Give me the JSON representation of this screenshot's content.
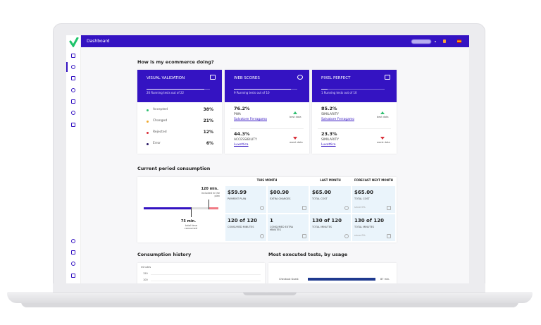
{
  "header": {
    "title": "Dashboard"
  },
  "overview": {
    "title": "How is my ecommerce doing?"
  },
  "cards": [
    {
      "title": "VISUAL VALIDATION",
      "subtitle": "20 Running tests out of 22",
      "rows": [
        {
          "label": "Accepted",
          "value": "38%"
        },
        {
          "label": "Changed",
          "value": "21%"
        },
        {
          "label": "Rejected",
          "value": "12%"
        },
        {
          "label": "Error",
          "value": "6%"
        }
      ]
    },
    {
      "title": "WEB SCORES",
      "subtitle": "9 Running tests out of 10",
      "items": [
        {
          "value": "76.2%",
          "metric": "PWA",
          "link": "Salvatore Ferragamo",
          "note": "best data"
        },
        {
          "value": "44.3%",
          "metric": "ACCESSIBILITY",
          "link": "Luxottica",
          "note": "worst data"
        }
      ]
    },
    {
      "title": "PIXEL PERFECT",
      "subtitle": "1 Running tests out of 10",
      "items": [
        {
          "value": "85.2%",
          "metric": "SIMILARITY",
          "link": "Salvatore Ferragamo",
          "note": "best data"
        },
        {
          "value": "23.3%",
          "metric": "SIMILARITY",
          "link": "Luxottica",
          "note": "worst data"
        }
      ]
    }
  ],
  "consumption": {
    "title": "Current period consumption",
    "plan_label": "120 min.",
    "plan_note": "included in the plan",
    "used_label": "75 min.",
    "used_note": "total time consumed",
    "columns": [
      "THIS MONTH",
      "LAST MONTH",
      "FORECAST NEXT MONTH"
    ],
    "cells": [
      {
        "value": "$59.99",
        "label": "PAYMENT PLAN"
      },
      {
        "value": "$00.90",
        "label": "EXTRA CHARGES"
      },
      {
        "value": "$65.00",
        "label": "TOTAL COST"
      },
      {
        "value": "$65.00",
        "label": "TOTAL COST",
        "note": "since 0%"
      },
      {
        "value": "120 of 120",
        "label": "CONSUMED MINUTES"
      },
      {
        "value": "1",
        "label": "CONSUMED EXTRA MINUTES"
      },
      {
        "value": "130 of 120",
        "label": "TOTAL MINUTES"
      },
      {
        "value": "130 of 120",
        "label": "TOTAL MINUTES",
        "note": "since 0%"
      }
    ]
  },
  "history": {
    "title": "Consumption history",
    "axis_label": "minutes",
    "ticks": [
      "150",
      "100"
    ]
  },
  "usage": {
    "title": "Most executed tests, by usage",
    "rows": [
      {
        "label": "Checkout Guest",
        "value": "87 min."
      }
    ]
  }
}
